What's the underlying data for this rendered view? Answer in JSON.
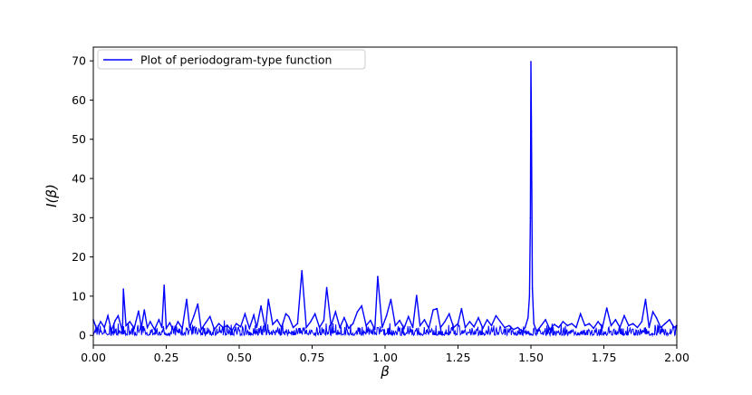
{
  "chart_data": {
    "type": "line",
    "xlabel": "β",
    "ylabel": "I(β)",
    "xlim": [
      0.0,
      2.0
    ],
    "ylim": [
      -2.5,
      73.5
    ],
    "xticks": [
      "0.00",
      "0.25",
      "0.50",
      "0.75",
      "1.00",
      "1.25",
      "1.50",
      "1.75",
      "2.00"
    ],
    "yticks": [
      "0",
      "10",
      "20",
      "30",
      "40",
      "50",
      "60",
      "70"
    ],
    "grid": false,
    "legend": {
      "position": "top-left"
    },
    "series": [
      {
        "name": "Plot of periodogram-type function",
        "color": "#0000ff",
        "x": [
          0.0,
          0.012,
          0.025,
          0.038,
          0.05,
          0.062,
          0.075,
          0.085,
          0.1,
          0.103,
          0.112,
          0.125,
          0.14,
          0.155,
          0.165,
          0.175,
          0.185,
          0.195,
          0.21,
          0.225,
          0.235,
          0.243,
          0.25,
          0.262,
          0.275,
          0.29,
          0.305,
          0.32,
          0.33,
          0.345,
          0.358,
          0.37,
          0.385,
          0.4,
          0.415,
          0.43,
          0.445,
          0.46,
          0.475,
          0.49,
          0.505,
          0.52,
          0.535,
          0.55,
          0.56,
          0.575,
          0.59,
          0.6,
          0.615,
          0.63,
          0.645,
          0.66,
          0.67,
          0.685,
          0.7,
          0.715,
          0.73,
          0.745,
          0.76,
          0.775,
          0.79,
          0.8,
          0.815,
          0.83,
          0.845,
          0.86,
          0.875,
          0.89,
          0.905,
          0.92,
          0.935,
          0.95,
          0.965,
          0.975,
          0.99,
          1.005,
          1.02,
          1.035,
          1.05,
          1.065,
          1.08,
          1.095,
          1.108,
          1.12,
          1.135,
          1.15,
          1.165,
          1.178,
          1.19,
          1.205,
          1.22,
          1.235,
          1.25,
          1.262,
          1.275,
          1.29,
          1.305,
          1.32,
          1.335,
          1.35,
          1.365,
          1.38,
          1.395,
          1.41,
          1.425,
          1.44,
          1.455,
          1.47,
          1.48,
          1.49,
          1.495,
          1.498,
          1.5,
          1.502,
          1.505,
          1.51,
          1.52,
          1.535,
          1.55,
          1.565,
          1.58,
          1.595,
          1.61,
          1.625,
          1.64,
          1.655,
          1.67,
          1.685,
          1.7,
          1.715,
          1.73,
          1.745,
          1.76,
          1.775,
          1.79,
          1.805,
          1.82,
          1.835,
          1.85,
          1.865,
          1.88,
          1.893,
          1.905,
          1.918,
          1.93,
          1.945,
          1.96,
          1.975,
          1.99,
          2.0
        ],
        "y": [
          4.0,
          1.5,
          3.5,
          2.0,
          5.0,
          1.2,
          3.8,
          5.0,
          1.0,
          11.8,
          2.5,
          3.5,
          1.8,
          6.2,
          2.0,
          6.5,
          2.0,
          3.5,
          1.5,
          4.0,
          2.0,
          12.8,
          1.8,
          3.2,
          1.2,
          3.5,
          1.8,
          9.2,
          2.0,
          5.0,
          8.0,
          1.5,
          3.2,
          4.8,
          1.5,
          3.0,
          2.0,
          2.5,
          1.2,
          3.0,
          2.2,
          5.5,
          1.8,
          5.2,
          2.0,
          7.5,
          1.5,
          9.2,
          2.8,
          4.0,
          2.0,
          5.5,
          4.8,
          2.0,
          3.0,
          16.5,
          2.0,
          3.5,
          5.5,
          2.0,
          3.8,
          12.2,
          2.5,
          6.0,
          2.0,
          4.5,
          1.8,
          3.0,
          6.0,
          7.5,
          2.5,
          3.8,
          1.5,
          15.0,
          2.0,
          5.0,
          9.2,
          2.5,
          3.8,
          1.8,
          4.8,
          2.0,
          10.2,
          2.5,
          4.0,
          1.8,
          6.5,
          6.8,
          2.0,
          3.5,
          5.5,
          2.0,
          3.0,
          6.8,
          2.0,
          3.5,
          2.2,
          4.5,
          1.8,
          4.0,
          2.5,
          5.0,
          3.5,
          2.0,
          2.5,
          1.5,
          2.0,
          1.0,
          2.0,
          4.5,
          10.0,
          30.0,
          69.8,
          52.0,
          12.0,
          3.0,
          1.0,
          2.5,
          4.0,
          1.5,
          2.8,
          2.0,
          3.5,
          2.5,
          3.0,
          2.0,
          5.5,
          2.5,
          3.0,
          1.8,
          3.5,
          2.0,
          7.0,
          2.5,
          4.0,
          2.0,
          5.0,
          2.5,
          3.0,
          2.0,
          3.5,
          9.2,
          2.0,
          6.0,
          4.5,
          2.0,
          3.0,
          4.0,
          2.0,
          2.5
        ]
      }
    ]
  }
}
